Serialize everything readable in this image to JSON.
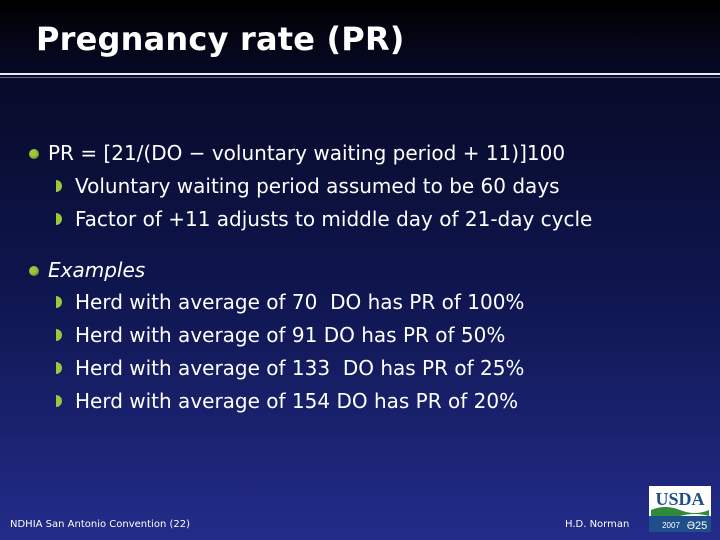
{
  "slide": {
    "title": "Pregnancy rate (PR)"
  },
  "bullets": [
    {
      "text": "PR = [21/(DO − voluntary waiting period + 11)]100",
      "italic": false,
      "subitems": [
        "Voluntary waiting period assumed to be 60 days",
        "Factor of +11 adjusts to middle day of 21-day cycle"
      ]
    },
    {
      "text": "Examples",
      "italic": true,
      "subitems": [
        "Herd with average of 70  DO has PR of 100%",
        "Herd with average of 91 DO has PR of 50%",
        "Herd with average of 133  DO has PR of 25%",
        "Herd with average of 154 DO has PR of 20%"
      ]
    }
  ],
  "footer": {
    "left": "NDHIA San Antonio Convention (22)",
    "right": "H.D. Norman"
  },
  "logo": {
    "text": "USDA",
    "year": "2007",
    "mark": "Ə25"
  },
  "colors": {
    "bullet": "#9bc83c",
    "text": "#ffffff",
    "logo_blue": "#1e4f8a",
    "logo_green": "#2f8a3b"
  }
}
